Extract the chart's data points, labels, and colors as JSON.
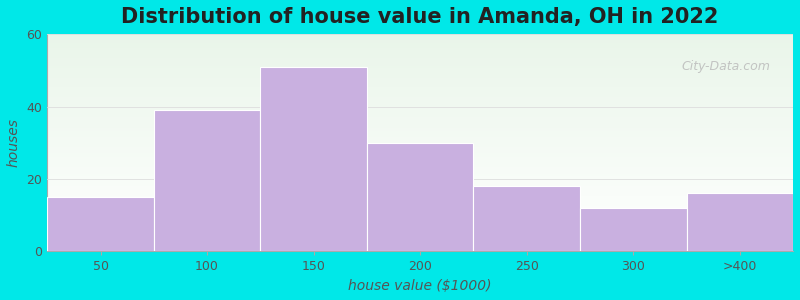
{
  "title": "Distribution of house value in Amanda, OH in 2022",
  "xlabel": "house value ($1000)",
  "ylabel": "houses",
  "categories": [
    "50",
    "100",
    "150",
    "200",
    "250",
    "300",
    ">400"
  ],
  "values": [
    15,
    39,
    51,
    30,
    18,
    12,
    16
  ],
  "bar_color": "#c9b0e0",
  "bar_edgecolor": "#ffffff",
  "ylim": [
    0,
    60
  ],
  "yticks": [
    0,
    20,
    40,
    60
  ],
  "background_color": "#00e8e8",
  "plot_bg_top": "#eaf5ea",
  "plot_bg_bottom": "#ffffff",
  "title_fontsize": 15,
  "axis_label_fontsize": 10,
  "tick_fontsize": 9,
  "watermark_text": "City-Data.com",
  "watermark_color": "#bbbbbb",
  "watermark_fontsize": 9
}
